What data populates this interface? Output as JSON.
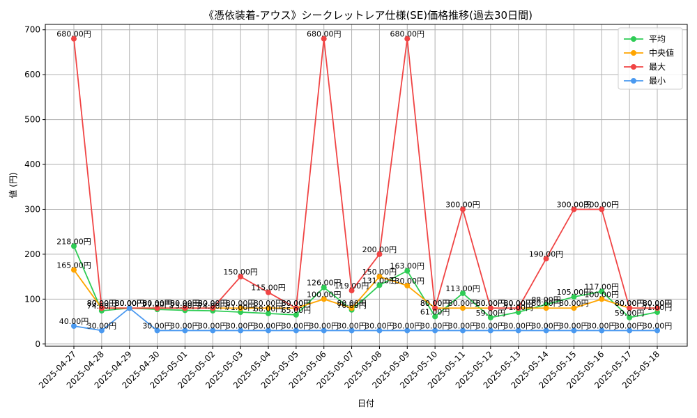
{
  "chart_data": {
    "type": "line",
    "title": "《憑依装着-アウス》シークレットレア仕様(SE)価格推移(過去30日間)",
    "xlabel": "日付",
    "ylabel": "値 (円)",
    "ylim": [
      0,
      700
    ],
    "yticks": [
      0,
      100,
      200,
      300,
      400,
      500,
      600,
      700
    ],
    "grid": true,
    "legend_position": "top-right",
    "label_suffix": "円",
    "categories": [
      "2025-04-27",
      "2025-04-28",
      "2025-04-29",
      "2025-04-30",
      "2025-05-01",
      "2025-05-02",
      "2025-05-03",
      "2025-05-04",
      "2025-05-05",
      "2025-05-06",
      "2025-05-07",
      "2025-05-08",
      "2025-05-09",
      "2025-05-10",
      "2025-05-11",
      "2025-05-12",
      "2025-05-13",
      "2025-05-14",
      "2025-05-15",
      "2025-05-16",
      "2025-05-17",
      "2025-05-18"
    ],
    "series": [
      {
        "name": "平均",
        "color": "#2ecc55",
        "values": [
          218,
          74,
          80,
          77,
          75,
          74,
          71,
          68,
          65,
          126,
          76,
          131,
          163,
          61,
          113,
          59,
          71,
          88,
          105,
          117,
          59,
          71
        ]
      },
      {
        "name": "中央値",
        "color": "#ffa500",
        "values": [
          165,
          80,
          80,
          80,
          80,
          80,
          80,
          80,
          80,
          100,
          80,
          150,
          130,
          80,
          80,
          80,
          80,
          80,
          80,
          100,
          80,
          80
        ]
      },
      {
        "name": "最大",
        "color": "#f04444",
        "values": [
          680,
          80,
          80,
          80,
          80,
          80,
          150,
          115,
          80,
          680,
          119,
          200,
          680,
          80,
          300,
          80,
          80,
          190,
          300,
          300,
          80,
          80
        ]
      },
      {
        "name": "最小",
        "color": "#4a99f0",
        "values": [
          40,
          30,
          80,
          30,
          30,
          30,
          30,
          30,
          30,
          30,
          30,
          30,
          30,
          30,
          30,
          30,
          30,
          30,
          30,
          30,
          30,
          30
        ]
      }
    ]
  }
}
